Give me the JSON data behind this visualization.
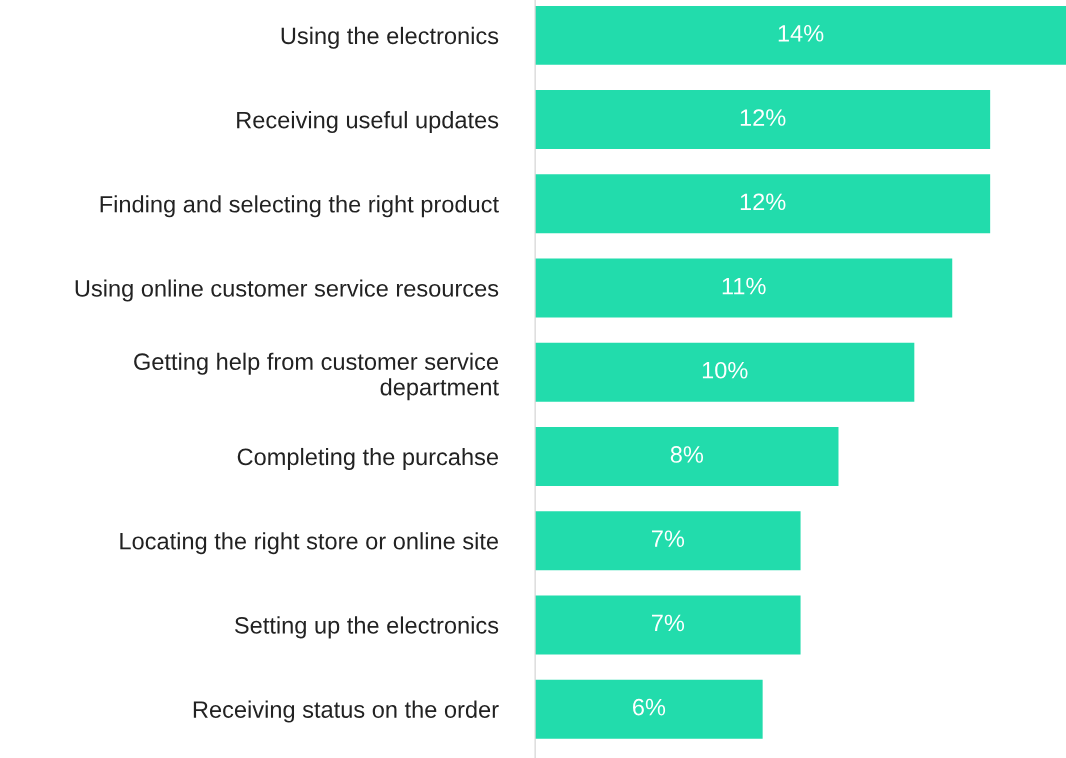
{
  "chart_data": {
    "type": "bar",
    "orientation": "horizontal",
    "categories": [
      "Using the electronics",
      "Receiving useful updates",
      "Finding and selecting the right product",
      "Using online customer service resources",
      "Getting help from customer service\ndepartment",
      "Completing the purcahse",
      "Locating the right store or online site",
      "Setting up the electronics",
      "Receiving status on the order"
    ],
    "values": [
      14,
      12,
      12,
      11,
      10,
      8,
      7,
      7,
      6
    ],
    "value_labels": [
      "14%",
      "12%",
      "12%",
      "11%",
      "10%",
      "8%",
      "7%",
      "7%",
      "6%"
    ],
    "color": "#22dcac",
    "grid": false,
    "legend": false
  }
}
